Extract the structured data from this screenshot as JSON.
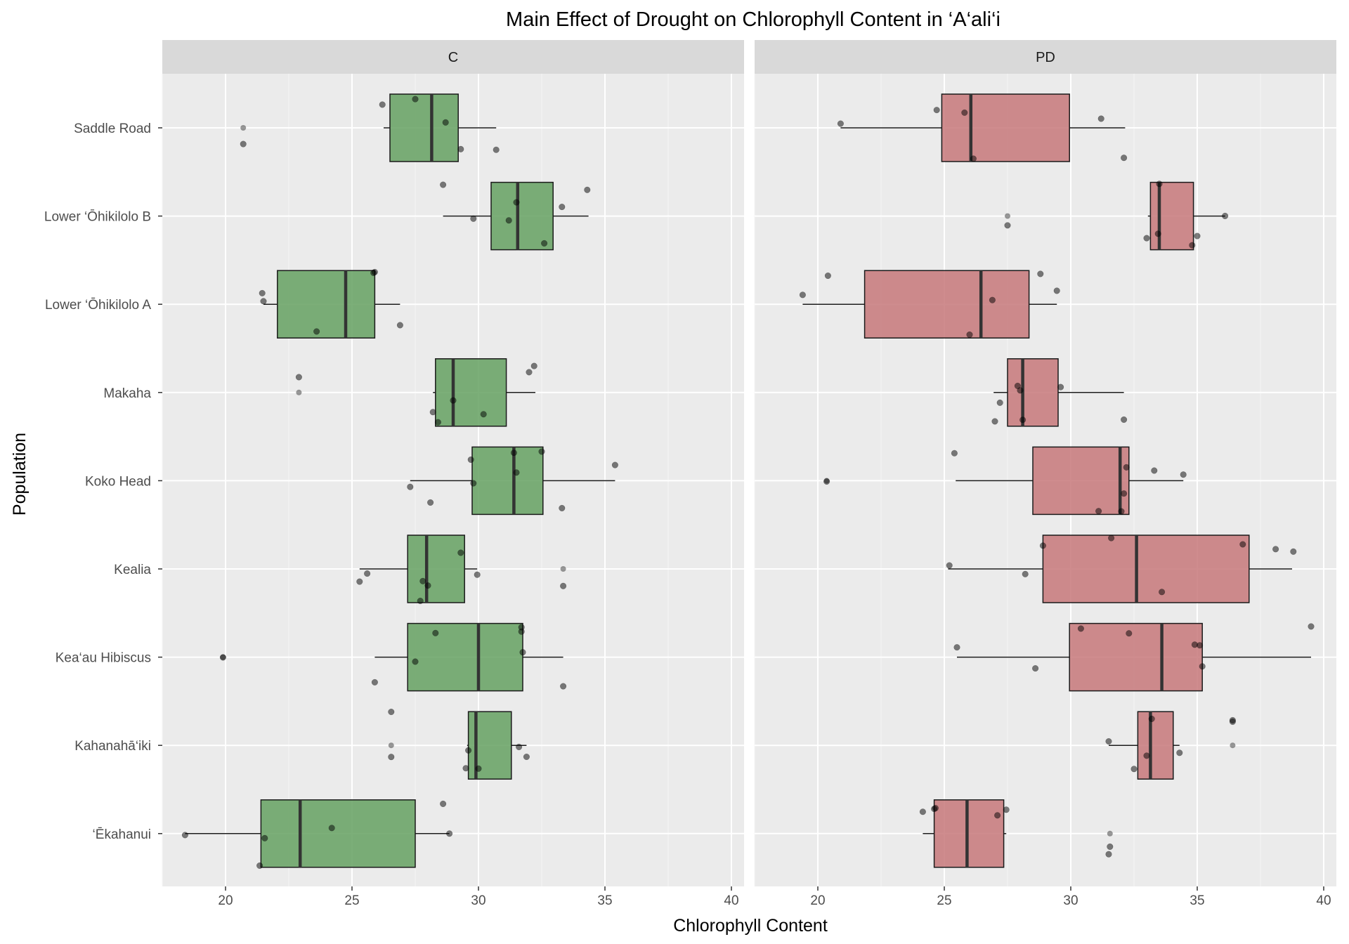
{
  "chart_data": {
    "type": "boxplot",
    "title": "Main Effect of Drought on Chlorophyll Content in ‘A‘ali‘i",
    "xlabel": "Chlorophyll Content",
    "ylabel": "Population",
    "xlim": [
      17.5,
      40.5
    ],
    "x_ticks": [
      20,
      25,
      30,
      35,
      40
    ],
    "grid": true,
    "legend": "none",
    "categories": [
      "Saddle Road",
      "Lower ‘Ōhikilolo B",
      "Lower ‘Ōhikilolo A",
      "Makaha",
      "Koko Head",
      "Kealia",
      "Kea‘au Hibiscus",
      "Kahanahā‘iki",
      "‘Ēkahanui"
    ],
    "facets": [
      {
        "label": "C",
        "fill": "#5f9e5b",
        "boxes": [
          {
            "population": "Saddle Road",
            "whisker_low": 26.25,
            "q1": 26.5,
            "median": 28.15,
            "q3": 29.2,
            "whisker_high": 30.7,
            "outliers": [
              20.7
            ]
          },
          {
            "population": "Lower ‘Ōhikilolo B",
            "whisker_low": 28.6,
            "q1": 30.5,
            "median": 31.55,
            "q3": 32.95,
            "whisker_high": 34.35,
            "outliers": []
          },
          {
            "population": "Lower ‘Ōhikilolo A",
            "whisker_low": 21.5,
            "q1": 22.05,
            "median": 24.75,
            "q3": 25.9,
            "whisker_high": 26.9,
            "outliers": []
          },
          {
            "population": "Makaha",
            "whisker_low": 28.2,
            "q1": 28.3,
            "median": 29.0,
            "q3": 31.1,
            "whisker_high": 32.25,
            "outliers": [
              22.9
            ]
          },
          {
            "population": "Koko Head",
            "whisker_low": 27.3,
            "q1": 29.75,
            "median": 31.4,
            "q3": 32.55,
            "whisker_high": 35.4,
            "outliers": []
          },
          {
            "population": "Kealia",
            "whisker_low": 25.3,
            "q1": 27.2,
            "median": 27.95,
            "q3": 29.45,
            "whisker_high": 29.95,
            "outliers": [
              33.35
            ]
          },
          {
            "population": "Kea‘au Hibiscus",
            "whisker_low": 25.9,
            "q1": 27.2,
            "median": 30.0,
            "q3": 31.75,
            "whisker_high": 33.35,
            "outliers": [
              19.9
            ]
          },
          {
            "population": "Kahanahā‘iki",
            "whisker_low": 29.55,
            "q1": 29.6,
            "median": 29.9,
            "q3": 31.3,
            "whisker_high": 31.9,
            "outliers": [
              26.55
            ]
          },
          {
            "population": "‘Ēkahanui",
            "whisker_low": 18.4,
            "q1": 21.4,
            "median": 22.95,
            "q3": 27.5,
            "whisker_high": 28.85,
            "outliers": []
          }
        ],
        "points": [
          {
            "population": "Saddle Road",
            "values": [
              20.7,
              27.5,
              28.7,
              30.7,
              26.2,
              29.3
            ]
          },
          {
            "population": "Lower ‘Ōhikilolo B",
            "values": [
              31.2,
              33.3,
              31.5,
              29.8,
              34.3,
              28.6,
              32.6
            ]
          },
          {
            "population": "Lower ‘Ōhikilolo A",
            "values": [
              21.5,
              21.45,
              23.6,
              25.85,
              26.9,
              25.9
            ]
          },
          {
            "population": "Makaha",
            "values": [
              22.9,
              28.4,
              29.0,
              32.2,
              32.0,
              30.2,
              28.2
            ]
          },
          {
            "population": "Koko Head",
            "values": [
              28.1,
              29.8,
              33.3,
              35.4,
              29.7,
              31.4,
              31.5,
              32.5,
              27.3
            ]
          },
          {
            "population": "Kealia",
            "values": [
              33.35,
              25.6,
              25.3,
              27.7,
              27.8,
              29.3,
              28.0,
              29.95
            ]
          },
          {
            "population": "Kea‘au Hibiscus",
            "values": [
              19.9,
              27.5,
              31.7,
              31.75,
              33.35,
              28.3,
              31.7,
              25.9
            ]
          },
          {
            "population": "Kahanahā‘iki",
            "values": [
              31.6,
              29.6,
              30.0,
              26.55,
              26.55,
              31.9,
              29.5
            ]
          },
          {
            "population": "‘Ēkahanui",
            "values": [
              18.4,
              21.55,
              28.6,
              28.85,
              21.35,
              24.2
            ]
          }
        ]
      },
      {
        "label": "PD",
        "fill": "#c57375",
        "boxes": [
          {
            "population": "Saddle Road",
            "whisker_low": 20.9,
            "q1": 24.9,
            "median": 26.05,
            "q3": 29.95,
            "whisker_high": 32.15,
            "outliers": []
          },
          {
            "population": "Lower ‘Ōhikilolo B",
            "whisker_low": 33.05,
            "q1": 33.15,
            "median": 33.5,
            "q3": 34.85,
            "whisker_high": 36.1,
            "outliers": [
              27.5
            ]
          },
          {
            "population": "Lower ‘Ōhikilolo A",
            "whisker_low": 19.4,
            "q1": 21.85,
            "median": 26.45,
            "q3": 28.35,
            "whisker_high": 29.45,
            "outliers": []
          },
          {
            "population": "Makaha",
            "whisker_low": 26.95,
            "q1": 27.5,
            "median": 28.1,
            "q3": 29.5,
            "whisker_high": 32.1,
            "outliers": []
          },
          {
            "population": "Koko Head",
            "whisker_low": 25.45,
            "q1": 28.5,
            "median": 31.95,
            "q3": 32.3,
            "whisker_high": 34.45,
            "outliers": [
              20.35
            ]
          },
          {
            "population": "Kealia",
            "whisker_low": 25.15,
            "q1": 28.9,
            "median": 32.6,
            "q3": 37.05,
            "whisker_high": 38.75,
            "outliers": []
          },
          {
            "population": "Kea‘au Hibiscus",
            "whisker_low": 25.5,
            "q1": 29.95,
            "median": 33.6,
            "q3": 35.2,
            "whisker_high": 39.5,
            "outliers": []
          },
          {
            "population": "Kahanahā‘iki",
            "whisker_low": 31.5,
            "q1": 32.65,
            "median": 33.15,
            "q3": 34.05,
            "whisker_high": 34.3,
            "outliers": [
              36.4
            ]
          },
          {
            "population": "‘Ēkahanui",
            "whisker_low": 24.15,
            "q1": 24.6,
            "median": 25.9,
            "q3": 27.35,
            "whisker_high": 27.45,
            "outliers": [
              31.55
            ]
          }
        ],
        "points": [
          {
            "population": "Saddle Road",
            "values": [
              20.9,
              24.7,
              31.2,
              32.1,
              26.15,
              25.8
            ]
          },
          {
            "population": "Lower ‘Ōhikilolo B",
            "values": [
              27.5,
              33.5,
              35.0,
              33.45,
              34.8,
              33.0,
              36.1
            ]
          },
          {
            "population": "Lower ‘Ōhikilolo A",
            "values": [
              26.0,
              29.45,
              19.4,
              20.4,
              26.9,
              28.8
            ]
          },
          {
            "population": "Makaha",
            "values": [
              27.2,
              27.9,
              28.1,
              28.0,
              29.6,
              32.1,
              27.0
            ]
          },
          {
            "population": "Koko Head",
            "values": [
              32.1,
              34.45,
              32.0,
              33.3,
              20.35,
              31.1,
              32.2,
              25.4
            ]
          },
          {
            "population": "Kealia",
            "values": [
              28.9,
              31.6,
              38.8,
              38.1,
              28.2,
              25.2,
              36.8,
              33.6
            ]
          },
          {
            "population": "Kea‘au Hibiscus",
            "values": [
              35.2,
              28.6,
              30.4,
              32.3,
              34.9,
              39.5,
              35.1,
              25.5
            ]
          },
          {
            "population": "Kahanahā‘iki",
            "values": [
              33.0,
              31.5,
              32.5,
              33.2,
              34.3,
              36.4,
              36.4
            ]
          },
          {
            "population": "‘Ēkahanui",
            "values": [
              24.6,
              24.15,
              24.65,
              31.55,
              27.45,
              27.1,
              31.5
            ]
          }
        ]
      }
    ]
  }
}
